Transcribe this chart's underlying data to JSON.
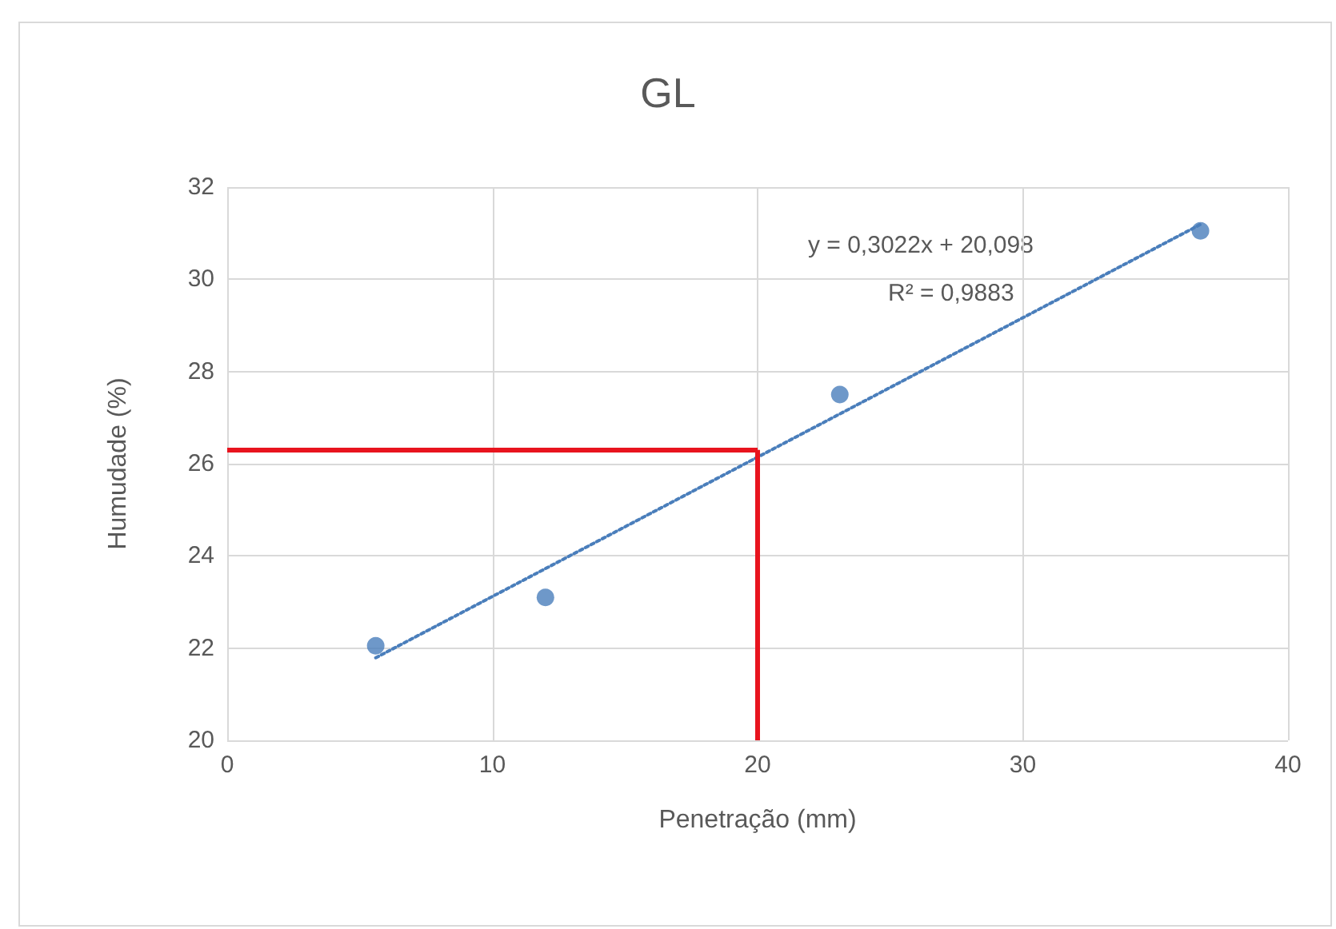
{
  "chart_data": {
    "type": "scatter",
    "title": "GL",
    "xlabel": "Penetração (mm)",
    "ylabel": "Humudade (%)",
    "xlim": [
      0,
      40
    ],
    "xticks": [
      0,
      10,
      20,
      30,
      40
    ],
    "ylim": [
      20,
      32
    ],
    "yticks": [
      20,
      22,
      24,
      26,
      28,
      30,
      32
    ],
    "grid": true,
    "series": [
      {
        "color": "#4a7ebb",
        "marker": "circle",
        "x": [
          5.6,
          12,
          23.1,
          36.7
        ],
        "values": [
          22.05,
          23.1,
          27.5,
          31.05
        ]
      },
      {
        "type": "line",
        "color": "#4a7ebb",
        "line_style": "dotted",
        "marker": "none",
        "x": [
          5.6,
          36.7
        ],
        "values": [
          21.79,
          31.19
        ]
      }
    ],
    "ref_lines": [
      {
        "axis": "x",
        "value": 20,
        "color": "#e8141e"
      },
      {
        "axis": "y",
        "value": 26.3,
        "color": "#e8141e"
      }
    ],
    "annotations": [
      "y = 0,3022x + 20,098",
      "R² = 0,9883"
    ]
  }
}
